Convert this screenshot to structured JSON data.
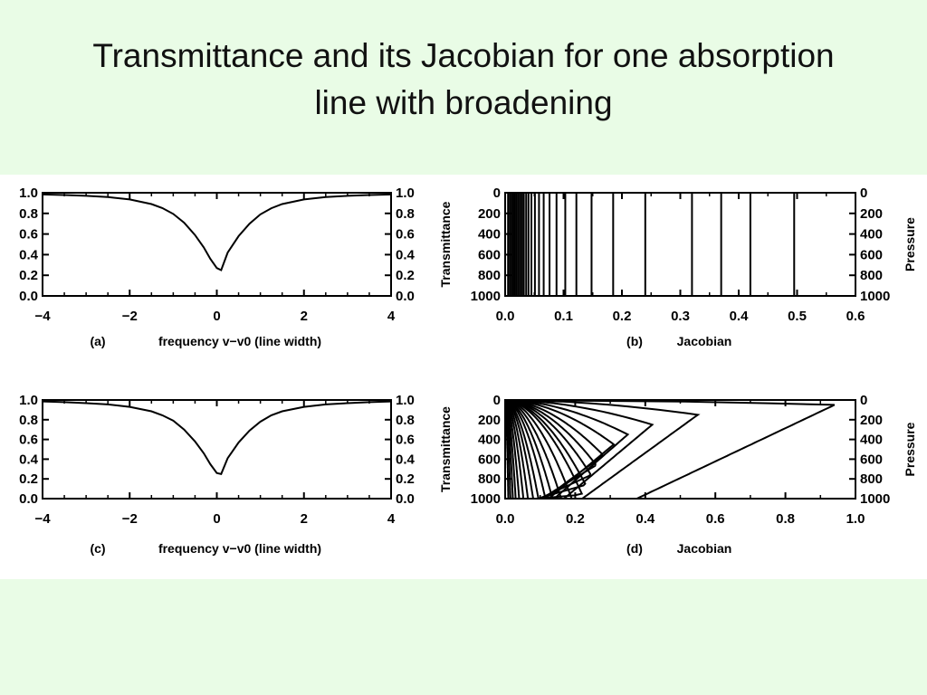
{
  "slide": {
    "title_line1": "Transmittance and its Jacobian for one absorption",
    "title_line2": "line with broadening",
    "background_color": "#e9fce6",
    "panel_color": "#ffffff"
  },
  "chart_data": [
    {
      "id": "a",
      "type": "line",
      "panel_label": "(a)",
      "xlabel": "frequency v−v0 (line width)",
      "ylabel_right": "Transmittance",
      "xlim": [
        -4,
        4
      ],
      "ylim": [
        0,
        1
      ],
      "x_ticks": [
        -4,
        -2,
        0,
        2,
        4
      ],
      "x_tick_labels": [
        "−4",
        "−2",
        "0",
        "2",
        "4"
      ],
      "y_ticks": [
        1.0,
        0.8,
        0.6,
        0.4,
        0.2,
        0.0
      ],
      "y_tick_labels": [
        "1.0",
        "0.8",
        "0.6",
        "0.4",
        "0.2",
        "0.0"
      ],
      "series": [
        {
          "x": [
            -4,
            -3.5,
            -3,
            -2.5,
            -2,
            -1.5,
            -1.25,
            -1,
            -0.75,
            -0.5,
            -0.3,
            -0.15,
            0,
            0.1,
            0.25,
            0.5,
            0.75,
            1,
            1.25,
            1.5,
            2,
            2.5,
            3,
            3.5,
            4
          ],
          "y": [
            0.983,
            0.978,
            0.97,
            0.958,
            0.935,
            0.89,
            0.852,
            0.795,
            0.71,
            0.59,
            0.47,
            0.36,
            0.27,
            0.25,
            0.42,
            0.58,
            0.7,
            0.79,
            0.85,
            0.89,
            0.935,
            0.958,
            0.97,
            0.978,
            0.983
          ]
        }
      ]
    },
    {
      "id": "b",
      "type": "line",
      "panel_label": "(b)",
      "xlabel": "Jacobian",
      "ylabel_right": "Pressure",
      "xlim": [
        0.0,
        0.6
      ],
      "ylim": [
        1000,
        0
      ],
      "x_ticks": [
        0.0,
        0.1,
        0.2,
        0.3,
        0.4,
        0.5,
        0.6
      ],
      "x_tick_labels": [
        "0.0",
        "0.1",
        "0.2",
        "0.3",
        "0.4",
        "0.5",
        "0.6"
      ],
      "y_ticks": [
        0,
        200,
        400,
        600,
        800,
        1000
      ],
      "y_tick_labels": [
        "0",
        "200",
        "400",
        "600",
        "800",
        "1000"
      ],
      "vertical_lines_x": [
        0.005,
        0.008,
        0.011,
        0.014,
        0.017,
        0.02,
        0.023,
        0.026,
        0.029,
        0.032,
        0.036,
        0.04,
        0.045,
        0.051,
        0.058,
        0.066,
        0.076,
        0.088,
        0.103,
        0.122,
        0.148,
        0.185,
        0.24,
        0.32,
        0.37,
        0.42,
        0.495
      ]
    },
    {
      "id": "c",
      "type": "line",
      "panel_label": "(c)",
      "xlabel": "frequency v−v0 (line width)",
      "ylabel_right": "Transmittance",
      "xlim": [
        -4,
        4
      ],
      "ylim": [
        0,
        1
      ],
      "x_ticks": [
        -4,
        -2,
        0,
        2,
        4
      ],
      "x_tick_labels": [
        "−4",
        "−2",
        "0",
        "2",
        "4"
      ],
      "y_ticks": [
        1.0,
        0.8,
        0.6,
        0.4,
        0.2,
        0.0
      ],
      "y_tick_labels": [
        "1.0",
        "0.8",
        "0.6",
        "0.4",
        "0.2",
        "0.0"
      ],
      "series": [
        {
          "x": [
            -4,
            -3.5,
            -3,
            -2.5,
            -2,
            -1.5,
            -1.25,
            -1,
            -0.75,
            -0.5,
            -0.3,
            -0.15,
            0,
            0.1,
            0.25,
            0.5,
            0.75,
            1,
            1.25,
            1.5,
            2,
            2.5,
            3,
            3.5,
            4
          ],
          "y": [
            0.985,
            0.978,
            0.968,
            0.955,
            0.93,
            0.885,
            0.845,
            0.79,
            0.7,
            0.58,
            0.46,
            0.35,
            0.26,
            0.25,
            0.41,
            0.57,
            0.69,
            0.78,
            0.845,
            0.885,
            0.93,
            0.955,
            0.968,
            0.978,
            0.985
          ]
        }
      ]
    },
    {
      "id": "d",
      "type": "line",
      "panel_label": "(d)",
      "xlabel": "Jacobian",
      "ylabel_right": "Pressure",
      "xlim": [
        0.0,
        1.0
      ],
      "ylim": [
        1000,
        0
      ],
      "x_ticks": [
        0.0,
        0.2,
        0.4,
        0.6,
        0.8,
        1.0
      ],
      "x_tick_labels": [
        "0.0",
        "0.2",
        "0.4",
        "0.6",
        "0.8",
        "1.0"
      ],
      "y_ticks": [
        0,
        200,
        400,
        600,
        800,
        1000
      ],
      "y_tick_labels": [
        "0",
        "200",
        "400",
        "600",
        "800",
        "1000"
      ],
      "curve_peaks": [
        {
          "peak_x": 0.94,
          "peak_p": 50
        },
        {
          "peak_x": 0.55,
          "peak_p": 150
        },
        {
          "peak_x": 0.42,
          "peak_p": 250
        },
        {
          "peak_x": 0.35,
          "peak_p": 350
        },
        {
          "peak_x": 0.31,
          "peak_p": 450
        },
        {
          "peak_x": 0.28,
          "peak_p": 560
        },
        {
          "peak_x": 0.26,
          "peak_p": 660
        },
        {
          "peak_x": 0.245,
          "peak_p": 760
        },
        {
          "peak_x": 0.23,
          "peak_p": 860
        },
        {
          "peak_x": 0.22,
          "peak_p": 960
        },
        {
          "peak_x": 0.19,
          "peak_p": 1000
        },
        {
          "peak_x": 0.16,
          "peak_p": 1000
        },
        {
          "peak_x": 0.135,
          "peak_p": 1000
        },
        {
          "peak_x": 0.115,
          "peak_p": 1000
        },
        {
          "peak_x": 0.095,
          "peak_p": 1000
        },
        {
          "peak_x": 0.08,
          "peak_p": 1000
        },
        {
          "peak_x": 0.065,
          "peak_p": 1000
        },
        {
          "peak_x": 0.052,
          "peak_p": 1000
        },
        {
          "peak_x": 0.04,
          "peak_p": 1000
        },
        {
          "peak_x": 0.03,
          "peak_p": 1000
        },
        {
          "peak_x": 0.022,
          "peak_p": 1000
        },
        {
          "peak_x": 0.015,
          "peak_p": 1000
        },
        {
          "peak_x": 0.009,
          "peak_p": 1000
        }
      ]
    }
  ]
}
